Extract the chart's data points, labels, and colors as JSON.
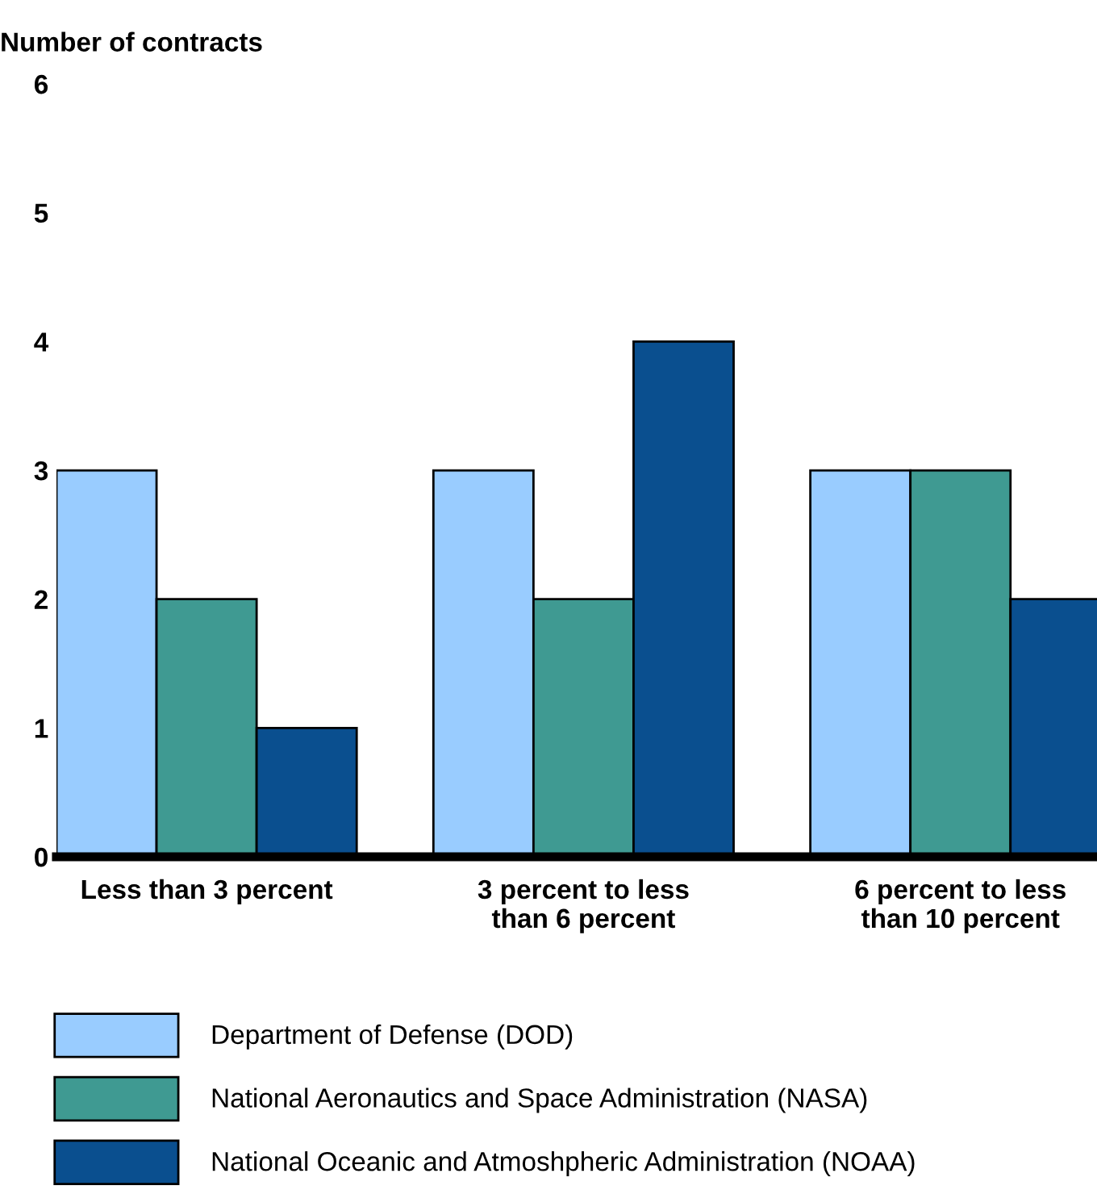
{
  "chart_data": {
    "type": "bar",
    "ylabel": "Number of contracts",
    "categories": [
      "Less than 3 percent",
      "3 percent to less\nthan 6 percent",
      "6 percent to less\nthan 10 percent"
    ],
    "series": [
      {
        "name": "Department of Defense (DOD)",
        "color": "#99ccff",
        "values": [
          3,
          3,
          3
        ]
      },
      {
        "name": "National Aeronautics and Space Administration (NASA)",
        "color": "#3f9a92",
        "values": [
          2,
          2,
          3
        ]
      },
      {
        "name": "National Oceanic and Atmoshpheric Administration (NOAA)",
        "color": "#0a4f8f",
        "values": [
          1,
          4,
          2
        ]
      }
    ],
    "ylim": [
      0,
      6
    ],
    "yticks": [
      0,
      1,
      2,
      3,
      4,
      5,
      6
    ],
    "grid": false,
    "legend": "bottom"
  }
}
